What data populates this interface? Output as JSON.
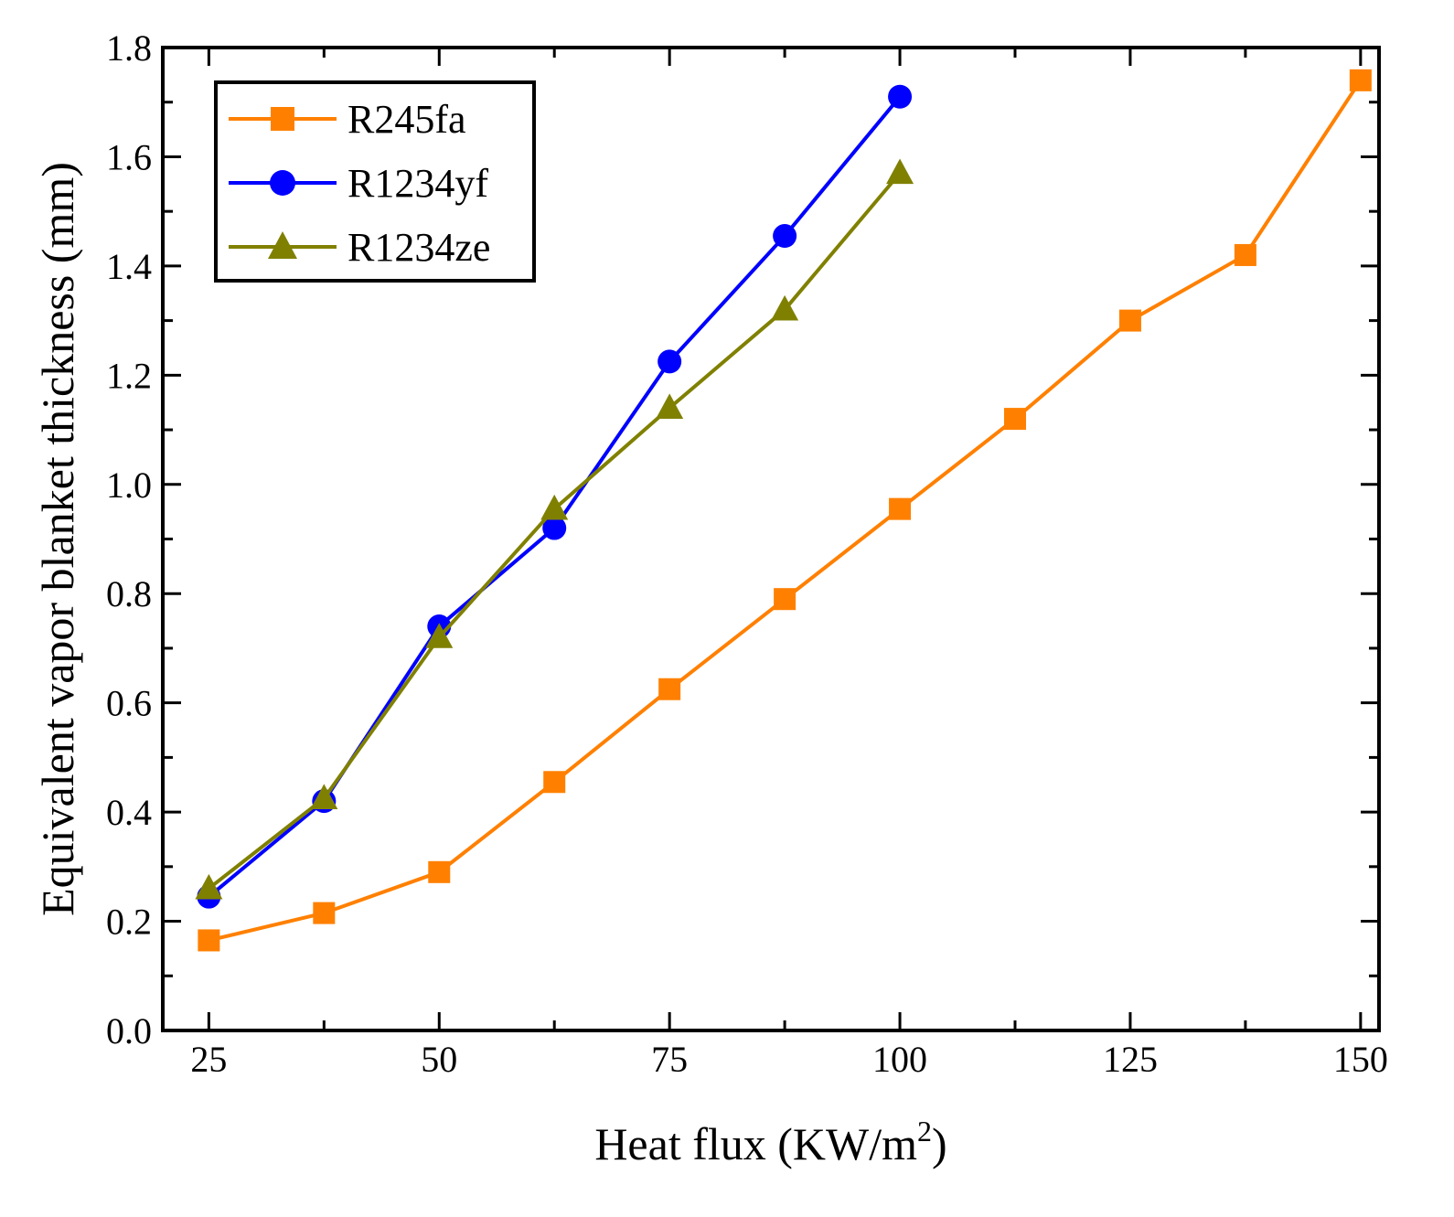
{
  "chart_data": {
    "type": "line",
    "title": "",
    "xlabel": "Heat flux (KW/m",
    "xlabel_sup": "2",
    "xlabel_close": ")",
    "ylabel": "Equivalent vapor blanket thickness (mm)",
    "xlim": [
      20,
      152
    ],
    "ylim": [
      0.0,
      1.8
    ],
    "xticks": [
      25,
      50,
      75,
      100,
      125,
      150
    ],
    "yticks": [
      0.0,
      0.2,
      0.4,
      0.6,
      0.8,
      1.0,
      1.2,
      1.4,
      1.6,
      1.8
    ],
    "ytick_labels": [
      "0.0",
      "0.2",
      "0.4",
      "0.6",
      "0.8",
      "1.0",
      "1.2",
      "1.4",
      "1.6",
      "1.8"
    ],
    "legend_position": "top-left",
    "grid": false,
    "series": [
      {
        "name": "R245fa",
        "color": "#FF8000",
        "marker": "square",
        "x": [
          25,
          37.5,
          50,
          62.5,
          75,
          87.5,
          100,
          112.5,
          125,
          137.5,
          150
        ],
        "y": [
          0.165,
          0.215,
          0.29,
          0.455,
          0.625,
          0.79,
          0.955,
          1.12,
          1.3,
          1.42,
          1.74
        ]
      },
      {
        "name": "R1234yf",
        "color": "#0000FF",
        "marker": "circle",
        "x": [
          25,
          37.5,
          50,
          62.5,
          75,
          87.5,
          100
        ],
        "y": [
          0.245,
          0.42,
          0.74,
          0.92,
          1.225,
          1.455,
          1.71
        ]
      },
      {
        "name": "R1234ze",
        "color": "#808000",
        "marker": "triangle",
        "x": [
          25,
          37.5,
          50,
          62.5,
          75,
          87.5,
          100
        ],
        "y": [
          0.26,
          0.425,
          0.72,
          0.955,
          1.14,
          1.32,
          1.57
        ]
      }
    ]
  }
}
